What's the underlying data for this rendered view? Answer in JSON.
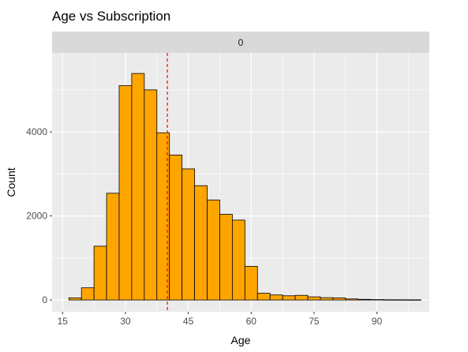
{
  "chart_data": {
    "type": "bar",
    "subtype": "histogram",
    "title": "Age vs Subscription",
    "facet_label": "0",
    "xlabel": "Age",
    "ylabel": "Count",
    "xlim": [
      12.5,
      102.5
    ],
    "ylim": [
      -280,
      5880
    ],
    "x_ticks": [
      15,
      30,
      45,
      60,
      75,
      90
    ],
    "y_ticks": [
      0,
      2000,
      4000
    ],
    "bin_width": 3,
    "bins": [
      {
        "x0": 16.5,
        "x1": 19.5,
        "count": 50
      },
      {
        "x0": 19.5,
        "x1": 22.5,
        "count": 290
      },
      {
        "x0": 22.5,
        "x1": 25.5,
        "count": 1280
      },
      {
        "x0": 25.5,
        "x1": 28.5,
        "count": 2540
      },
      {
        "x0": 28.5,
        "x1": 31.5,
        "count": 5100
      },
      {
        "x0": 31.5,
        "x1": 34.5,
        "count": 5390
      },
      {
        "x0": 34.5,
        "x1": 37.5,
        "count": 5000
      },
      {
        "x0": 37.5,
        "x1": 40.5,
        "count": 3980
      },
      {
        "x0": 40.5,
        "x1": 43.5,
        "count": 3450
      },
      {
        "x0": 43.5,
        "x1": 46.5,
        "count": 3120
      },
      {
        "x0": 46.5,
        "x1": 49.5,
        "count": 2720
      },
      {
        "x0": 49.5,
        "x1": 52.5,
        "count": 2380
      },
      {
        "x0": 52.5,
        "x1": 55.5,
        "count": 2040
      },
      {
        "x0": 55.5,
        "x1": 58.5,
        "count": 1900
      },
      {
        "x0": 58.5,
        "x1": 61.5,
        "count": 800
      },
      {
        "x0": 61.5,
        "x1": 64.5,
        "count": 160
      },
      {
        "x0": 64.5,
        "x1": 67.5,
        "count": 120
      },
      {
        "x0": 67.5,
        "x1": 70.5,
        "count": 100
      },
      {
        "x0": 70.5,
        "x1": 73.5,
        "count": 110
      },
      {
        "x0": 73.5,
        "x1": 76.5,
        "count": 75
      },
      {
        "x0": 76.5,
        "x1": 79.5,
        "count": 55
      },
      {
        "x0": 79.5,
        "x1": 82.5,
        "count": 50
      },
      {
        "x0": 82.5,
        "x1": 85.5,
        "count": 25
      },
      {
        "x0": 85.5,
        "x1": 88.5,
        "count": 15
      },
      {
        "x0": 88.5,
        "x1": 91.5,
        "count": 10
      },
      {
        "x0": 91.5,
        "x1": 94.5,
        "count": 6
      },
      {
        "x0": 94.5,
        "x1": 97.5,
        "count": 5
      },
      {
        "x0": 97.5,
        "x1": 100.5,
        "count": 4
      }
    ],
    "reference_line": {
      "x": 40,
      "style": "dashed"
    },
    "colors": {
      "fill": "#FFA500",
      "outline": "#000000",
      "reference_line": "#FF0000",
      "panel_background": "#EBEBEB",
      "strip_background": "#D9D9D9",
      "grid": "#FFFFFF"
    },
    "grid": true,
    "legend": "none"
  }
}
